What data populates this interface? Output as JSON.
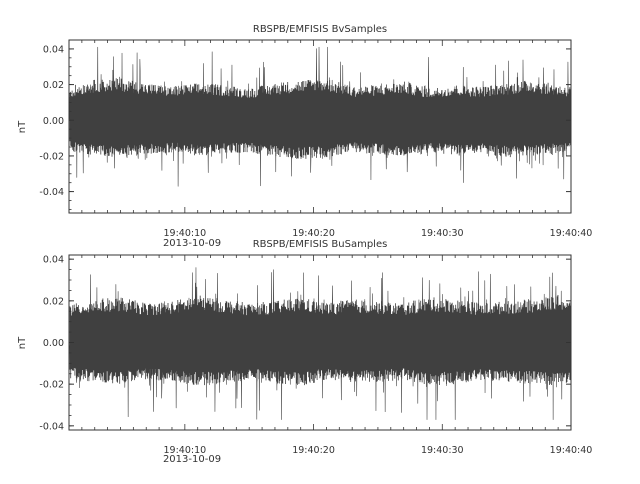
{
  "colors": {
    "trace": "#404040",
    "axis": "#333333",
    "text": "#333333",
    "background": "#ffffff"
  },
  "chart_data": [
    {
      "type": "line",
      "title": "RBSPB/EMFISIS  BvSamples",
      "ylabel": "nT",
      "xlabel": "",
      "date_label": "2013-10-09",
      "xlim": [
        "19:40:01",
        "19:40:40"
      ],
      "ylim": [
        -0.052,
        0.045
      ],
      "x_ticks": [
        "19:40:10",
        "19:40:20",
        "19:40:30",
        "19:40:40"
      ],
      "y_ticks": [
        "0.04",
        "0.02",
        "0.00",
        "-0.02",
        "-0.04"
      ],
      "y_tick_values": [
        0.04,
        0.02,
        0.0,
        -0.02,
        -0.04
      ],
      "grid": false,
      "series": [
        {
          "description_note": "",
          "x": [
            "19:40:01",
            "19:40:03",
            "19:40:05",
            "19:40:07",
            "19:40:09",
            "19:40:11",
            "19:40:13",
            "19:40:15",
            "19:40:17",
            "19:40:19",
            "19:40:21",
            "19:40:23",
            "19:40:25",
            "19:40:27",
            "19:40:29",
            "19:40:31",
            "19:40:33",
            "19:40:35",
            "19:40:37",
            "19:40:39",
            "19:40:40"
          ],
          "envelope_upper": [
            0.02,
            0.024,
            0.025,
            0.022,
            0.02,
            0.022,
            0.021,
            0.019,
            0.022,
            0.024,
            0.025,
            0.02,
            0.021,
            0.023,
            0.019,
            0.021,
            0.02,
            0.022,
            0.024,
            0.021,
            0.02
          ],
          "envelope_lower": [
            -0.018,
            -0.021,
            -0.022,
            -0.02,
            -0.019,
            -0.021,
            -0.02,
            -0.019,
            -0.022,
            -0.023,
            -0.022,
            -0.019,
            -0.02,
            -0.022,
            -0.019,
            -0.021,
            -0.02,
            -0.022,
            -0.021,
            -0.02,
            -0.019
          ],
          "peak_max": 0.041,
          "peak_min": -0.04
        }
      ]
    },
    {
      "type": "line",
      "title": "RBSPB/EMFISIS  BuSamples",
      "ylabel": "nT",
      "xlabel": "",
      "date_label": "2013-10-09",
      "xlim": [
        "19:40:01",
        "19:40:40"
      ],
      "ylim": [
        -0.042,
        0.042
      ],
      "x_ticks": [
        "19:40:10",
        "19:40:20",
        "19:40:30",
        "19:40:40"
      ],
      "y_ticks": [
        "0.04",
        "0.02",
        "0.00",
        "-0.02",
        "-0.04"
      ],
      "y_tick_values": [
        0.04,
        0.02,
        0.0,
        -0.02,
        -0.04
      ],
      "grid": false,
      "series": [
        {
          "description_note": "",
          "x": [
            "19:40:01",
            "19:40:03",
            "19:40:05",
            "19:40:07",
            "19:40:09",
            "19:40:11",
            "19:40:13",
            "19:40:15",
            "19:40:17",
            "19:40:19",
            "19:40:21",
            "19:40:23",
            "19:40:25",
            "19:40:27",
            "19:40:29",
            "19:40:31",
            "19:40:33",
            "19:40:35",
            "19:40:37",
            "19:40:39",
            "19:40:40"
          ],
          "envelope_upper": [
            0.019,
            0.022,
            0.023,
            0.02,
            0.021,
            0.024,
            0.022,
            0.02,
            0.021,
            0.023,
            0.02,
            0.022,
            0.021,
            0.02,
            0.023,
            0.022,
            0.02,
            0.021,
            0.022,
            0.024,
            0.021
          ],
          "envelope_lower": [
            -0.018,
            -0.02,
            -0.021,
            -0.019,
            -0.02,
            -0.022,
            -0.021,
            -0.019,
            -0.021,
            -0.022,
            -0.019,
            -0.021,
            -0.02,
            -0.019,
            -0.022,
            -0.021,
            -0.019,
            -0.02,
            -0.021,
            -0.022,
            -0.02
          ],
          "peak_max": 0.036,
          "peak_min": -0.037
        }
      ]
    }
  ]
}
